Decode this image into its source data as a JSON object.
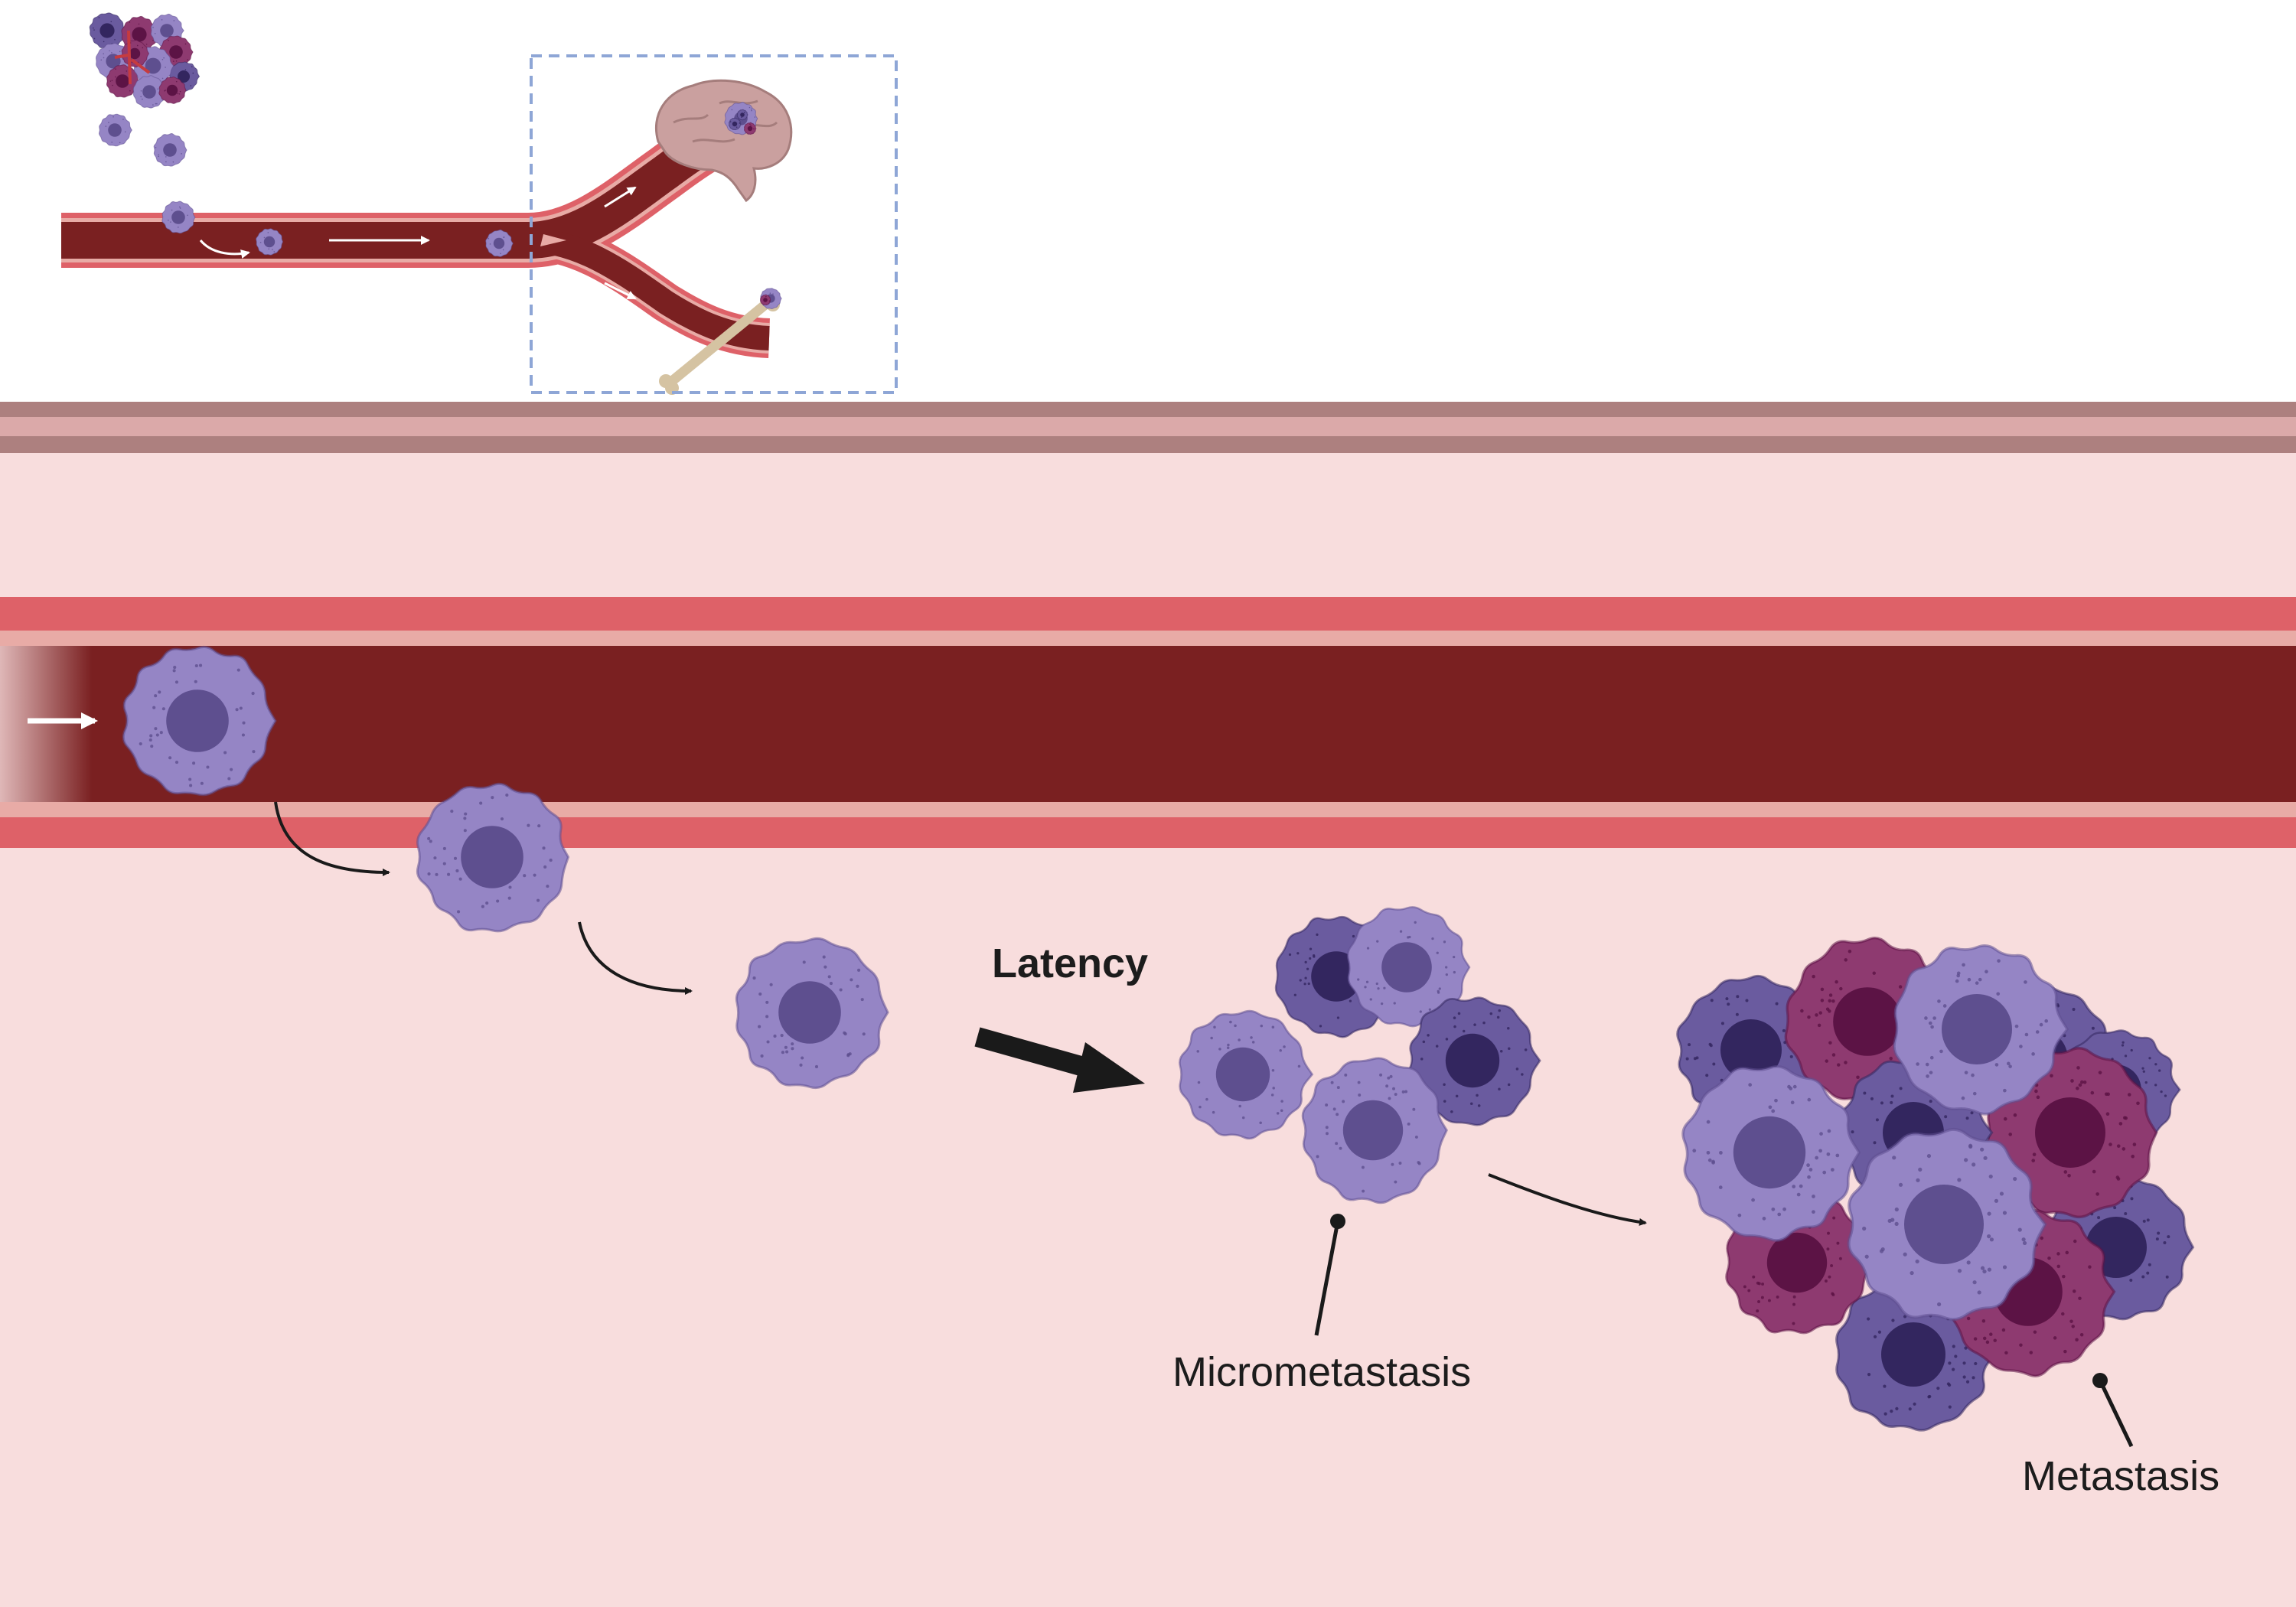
{
  "labels": {
    "latency": "Latency",
    "micrometastasis": "Micrometastasis",
    "metastasis": "Metastasis"
  },
  "colors": {
    "blood": "#7a2021",
    "vessel_wall": "#de6168",
    "vessel_lining": "#e8aba6",
    "tissue": "#f8dddd",
    "membrane_dark": "#ad807f",
    "membrane_light": "#dba9a9",
    "cell_light": "#9585c5",
    "cell_light_nucleus": "#5e4f8f",
    "cell_dark": "#6a5b9f",
    "cell_dark_nucleus": "#33265f",
    "cell_magenta": "#8e3a70",
    "cell_magenta_nucleus": "#5c1345",
    "bone": "#d5c3a2",
    "brain": "#caa09f",
    "selection_box": "#8ea6d6"
  },
  "icons": [
    "brain-icon",
    "bone-icon",
    "primary-tumor-icon",
    "blood-vessel-icon",
    "arrow-icon"
  ]
}
